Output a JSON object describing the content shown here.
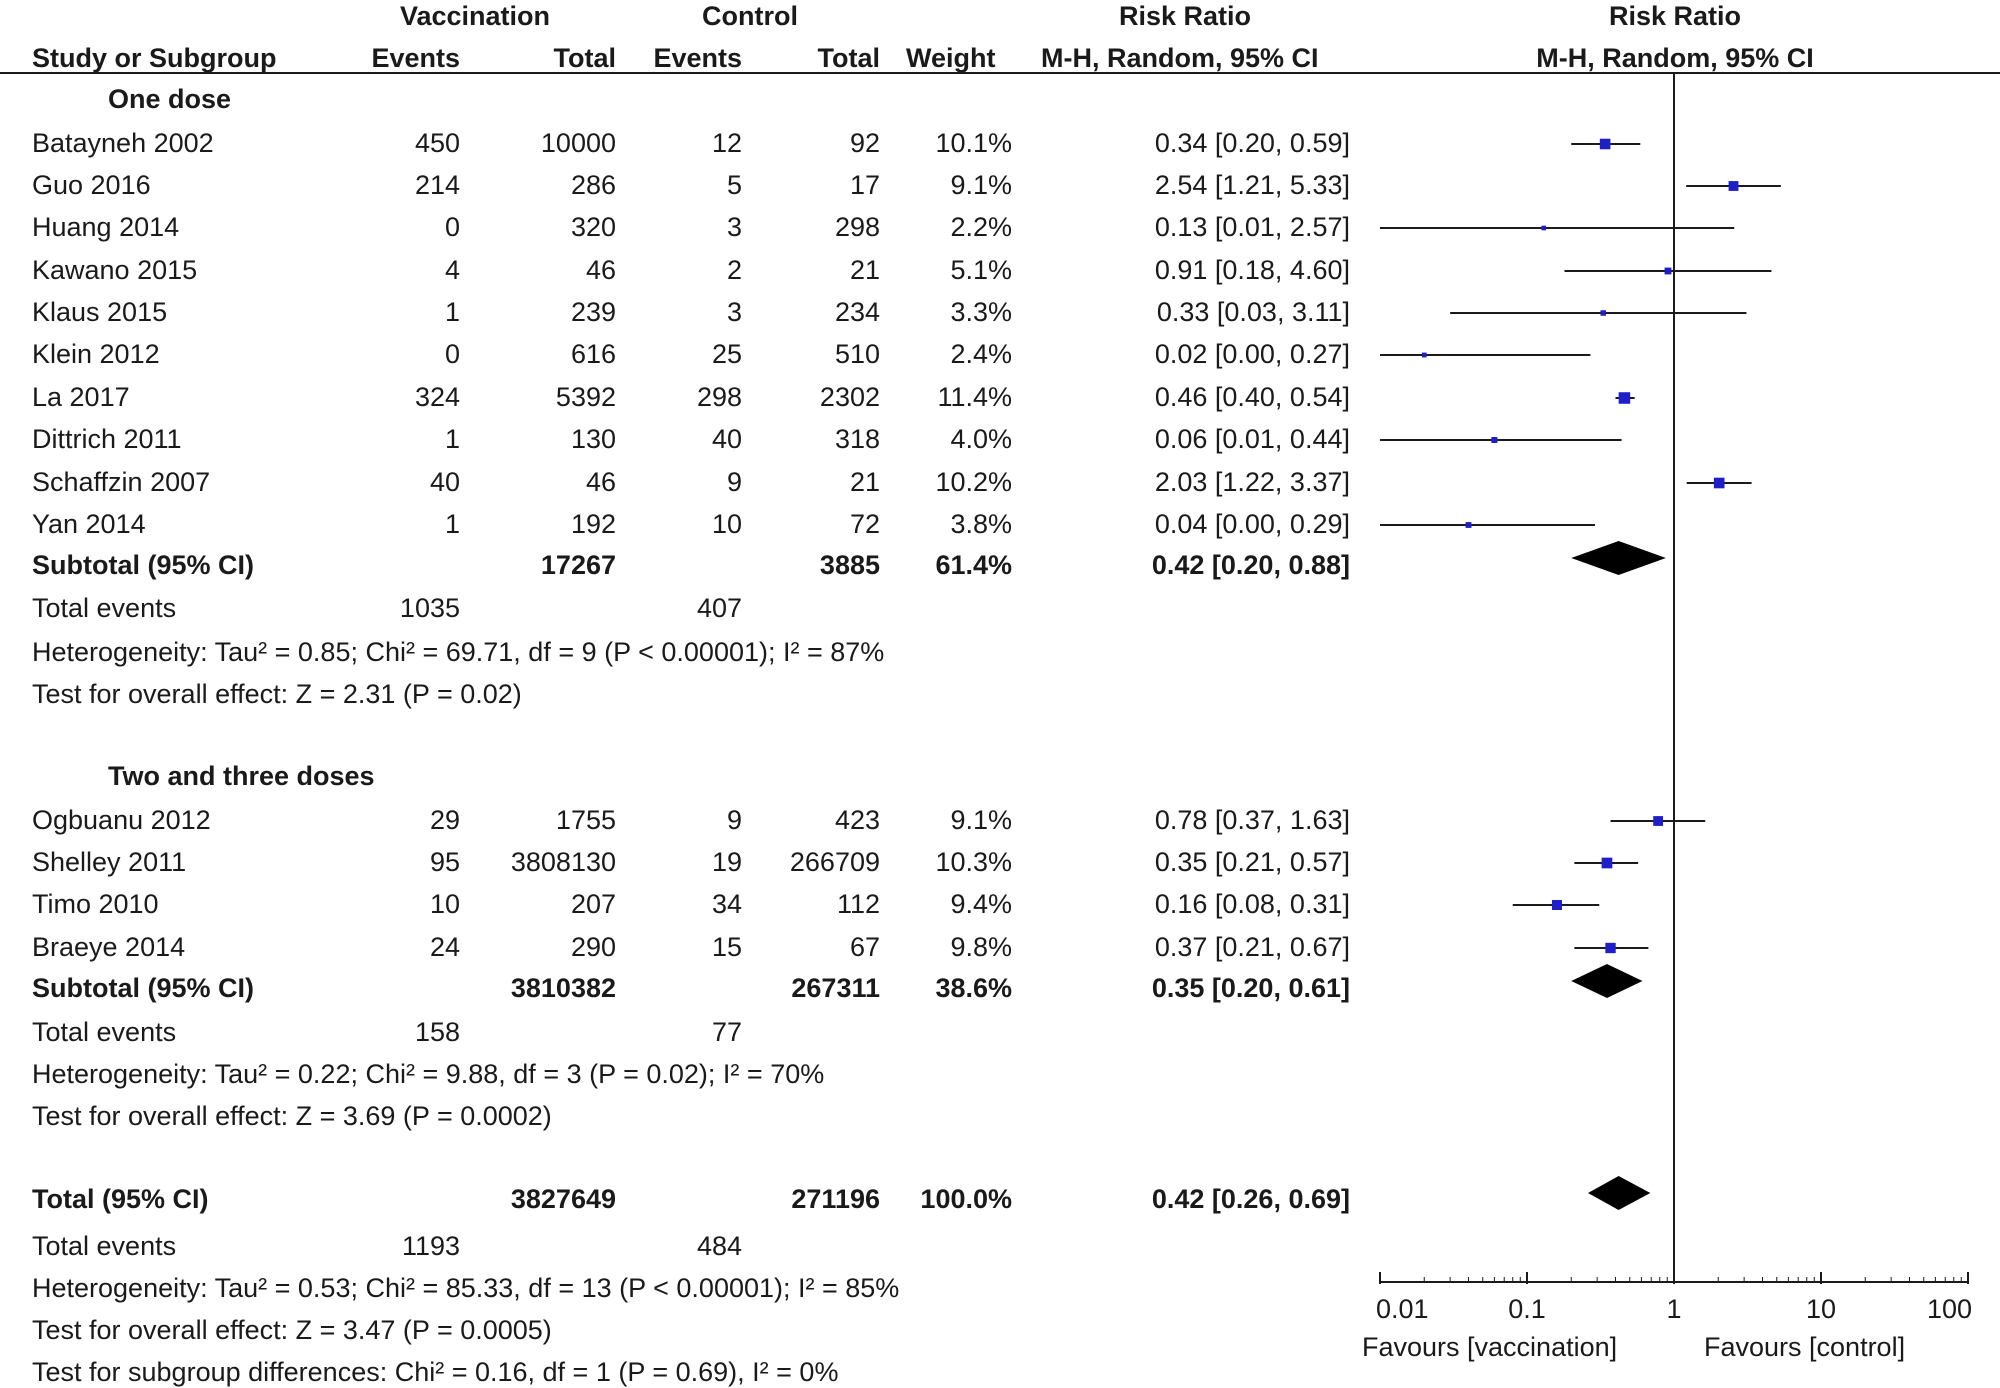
{
  "header": {
    "group1": "Vaccination",
    "group2": "Control",
    "rr_table": "Risk Ratio",
    "rr_plot": "Risk Ratio",
    "col_study": "Study or Subgroup",
    "col_events1": "Events",
    "col_total1": "Total",
    "col_events2": "Events",
    "col_total2": "Total",
    "col_weight": "Weight",
    "col_method": "M-H, Random, 95% CI",
    "plot_method": "M-H, Random, 95% CI"
  },
  "subgroup1": {
    "title": "One dose",
    "subtotal": {
      "label": "Subtotal (95% CI)",
      "total1": "17267",
      "total2": "3885",
      "weight": "61.4%",
      "rr": "0.42 [0.20, 0.88]"
    },
    "total_events": {
      "label": "Total events",
      "e1": "1035",
      "e2": "407"
    },
    "heterogeneity": "Heterogeneity: Tau² = 0.85; Chi² = 69.71, df = 9 (P < 0.00001); I² = 87%",
    "overall": "Test for overall effect: Z = 2.31 (P = 0.02)"
  },
  "subgroup2": {
    "title": "Two and three doses",
    "subtotal": {
      "label": "Subtotal (95% CI)",
      "total1": "3810382",
      "total2": "267311",
      "weight": "38.6%",
      "rr": "0.35 [0.20, 0.61]"
    },
    "total_events": {
      "label": "Total events",
      "e1": "158",
      "e2": "77"
    },
    "heterogeneity": "Heterogeneity: Tau² = 0.22; Chi² = 9.88, df = 3 (P = 0.02); I² = 70%",
    "overall": "Test for overall effect: Z = 3.69 (P = 0.0002)"
  },
  "total": {
    "label": "Total (95% CI)",
    "total1": "3827649",
    "total2": "271196",
    "weight": "100.0%",
    "rr": "0.42 [0.26, 0.69]",
    "total_events": {
      "label": "Total events",
      "e1": "1193",
      "e2": "484"
    },
    "heterogeneity": "Heterogeneity: Tau² = 0.53; Chi² = 85.33, df = 13 (P < 0.00001); I² = 85%",
    "overall": "Test for overall effect: Z = 3.47 (P = 0.0005)",
    "subgroup_diff": "Test for subgroup differences: Chi² = 0.16, df = 1 (P = 0.69), I² = 0%"
  },
  "axis": {
    "favours_left": "Favours [vaccination]",
    "favours_right": "Favours [control]"
  },
  "chart_data": {
    "type": "forest",
    "scale": "log",
    "xlim": [
      0.01,
      100
    ],
    "ticks": [
      {
        "value": 0.01,
        "label": "0.01"
      },
      {
        "value": 0.1,
        "label": "0.1"
      },
      {
        "value": 1,
        "label": "1"
      },
      {
        "value": 10,
        "label": "10"
      },
      {
        "value": 100,
        "label": "100"
      }
    ],
    "line_of_no_effect": 1,
    "marker_color": "#1f1fc8",
    "diamond_color": "#000000",
    "studies": [
      {
        "name": "Batayneh 2002",
        "e1": "450",
        "t1": "10000",
        "e2": "12",
        "t2": "92",
        "weight": "10.1%",
        "ci_text": "0.34 [0.20, 0.59]",
        "rr": 0.34,
        "lo": 0.2,
        "hi": 0.59,
        "group": 1
      },
      {
        "name": "Guo 2016",
        "e1": "214",
        "t1": "286",
        "e2": "5",
        "t2": "17",
        "weight": "9.1%",
        "ci_text": "2.54 [1.21, 5.33]",
        "rr": 2.54,
        "lo": 1.21,
        "hi": 5.33,
        "group": 1
      },
      {
        "name": "Huang 2014",
        "e1": "0",
        "t1": "320",
        "e2": "3",
        "t2": "298",
        "weight": "2.2%",
        "ci_text": "0.13 [0.01, 2.57]",
        "rr": 0.13,
        "lo": 0.01,
        "hi": 2.57,
        "group": 1
      },
      {
        "name": "Kawano 2015",
        "e1": "4",
        "t1": "46",
        "e2": "2",
        "t2": "21",
        "weight": "5.1%",
        "ci_text": "0.91 [0.18, 4.60]",
        "rr": 0.91,
        "lo": 0.18,
        "hi": 4.6,
        "group": 1
      },
      {
        "name": "Klaus 2015",
        "e1": "1",
        "t1": "239",
        "e2": "3",
        "t2": "234",
        "weight": "3.3%",
        "ci_text": "0.33 [0.03, 3.11]",
        "rr": 0.33,
        "lo": 0.03,
        "hi": 3.11,
        "group": 1
      },
      {
        "name": "Klein 2012",
        "e1": "0",
        "t1": "616",
        "e2": "25",
        "t2": "510",
        "weight": "2.4%",
        "ci_text": "0.02 [0.00, 0.27]",
        "rr": 0.02,
        "lo": 0.0015,
        "hi": 0.27,
        "group": 1
      },
      {
        "name": "La 2017",
        "e1": "324",
        "t1": "5392",
        "e2": "298",
        "t2": "2302",
        "weight": "11.4%",
        "ci_text": "0.46 [0.40, 0.54]",
        "rr": 0.46,
        "lo": 0.4,
        "hi": 0.54,
        "group": 1
      },
      {
        "name": "Dittrich 2011",
        "e1": "1",
        "t1": "130",
        "e2": "40",
        "t2": "318",
        "weight": "4.0%",
        "ci_text": "0.06 [0.01, 0.44]",
        "rr": 0.06,
        "lo": 0.01,
        "hi": 0.44,
        "group": 1
      },
      {
        "name": "Schaffzin 2007",
        "e1": "40",
        "t1": "46",
        "e2": "9",
        "t2": "21",
        "weight": "10.2%",
        "ci_text": "2.03 [1.22, 3.37]",
        "rr": 2.03,
        "lo": 1.22,
        "hi": 3.37,
        "group": 1
      },
      {
        "name": "Yan 2014",
        "e1": "1",
        "t1": "192",
        "e2": "10",
        "t2": "72",
        "weight": "3.8%",
        "ci_text": "0.04 [0.00, 0.29]",
        "rr": 0.04,
        "lo": 0.005,
        "hi": 0.29,
        "group": 1
      },
      {
        "name": "Ogbuanu 2012",
        "e1": "29",
        "t1": "1755",
        "e2": "9",
        "t2": "423",
        "weight": "9.1%",
        "ci_text": "0.78 [0.37, 1.63]",
        "rr": 0.78,
        "lo": 0.37,
        "hi": 1.63,
        "group": 2
      },
      {
        "name": "Shelley 2011",
        "e1": "95",
        "t1": "3808130",
        "e2": "19",
        "t2": "266709",
        "weight": "10.3%",
        "ci_text": "0.35 [0.21, 0.57]",
        "rr": 0.35,
        "lo": 0.21,
        "hi": 0.57,
        "group": 2
      },
      {
        "name": "Timo 2010",
        "e1": "10",
        "t1": "207",
        "e2": "34",
        "t2": "112",
        "weight": "9.4%",
        "ci_text": "0.16 [0.08, 0.31]",
        "rr": 0.16,
        "lo": 0.08,
        "hi": 0.31,
        "group": 2
      },
      {
        "name": "Braeye 2014",
        "e1": "24",
        "t1": "290",
        "e2": "15",
        "t2": "67",
        "weight": "9.8%",
        "ci_text": "0.37 [0.21, 0.67]",
        "rr": 0.37,
        "lo": 0.21,
        "hi": 0.67,
        "group": 2
      }
    ],
    "diamonds": [
      {
        "name": "Subtotal one dose",
        "rr": 0.42,
        "lo": 0.2,
        "hi": 0.88
      },
      {
        "name": "Subtotal two and three doses",
        "rr": 0.35,
        "lo": 0.2,
        "hi": 0.61
      },
      {
        "name": "Total",
        "rr": 0.42,
        "lo": 0.26,
        "hi": 0.69
      }
    ]
  }
}
